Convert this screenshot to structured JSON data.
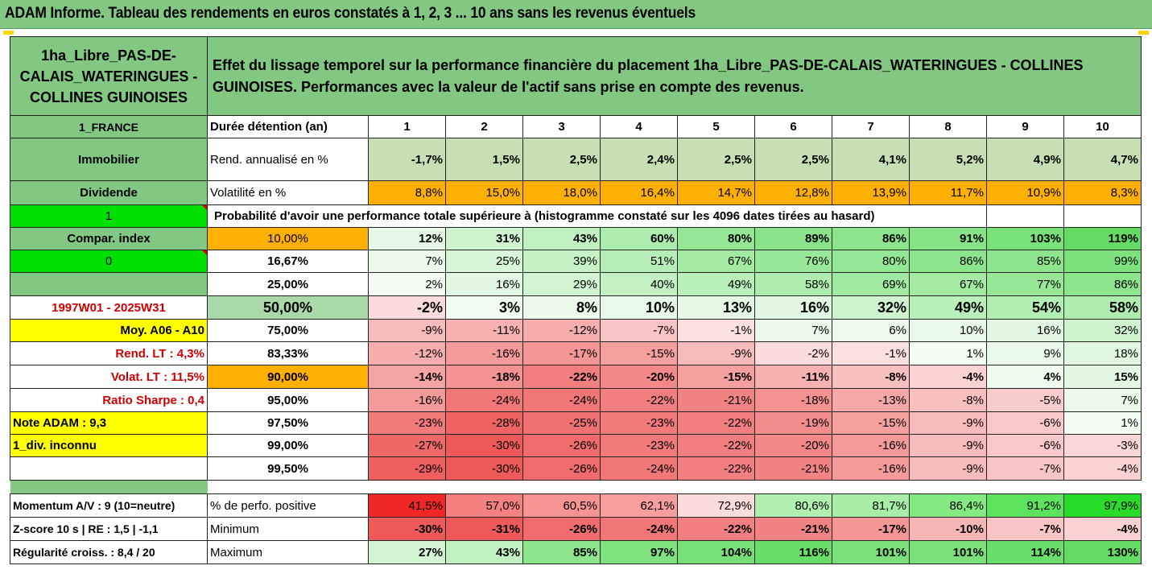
{
  "banner": {
    "title": "ADAM Informe. Tableau des rendements en euros constatés à 1, 2, 3 ... 10 ans sans les revenus éventuels"
  },
  "asset_name": "1ha_Libre_PAS-DE-CALAIS_WATERINGUES - COLLINES GUINOISES",
  "chart_title": "Effet du lissage temporel sur la performance financière du placement 1ha_Libre_PAS-DE-CALAIS_WATERINGUES - COLLINES GUINOISES. Performances avec la valeur de l'actif sans prise en compte des revenus.",
  "left": {
    "country": "1_FRANCE",
    "category": "Immobilier",
    "dividend": "Dividende",
    "dividend_value": "1",
    "compar_index": "Compar. index",
    "compar_value": "0",
    "period": "1997W01 - 2025W31",
    "moy": "Moy. A06 - A10",
    "rend_lt": "Rend. LT :    4,3%",
    "volat_lt": "Volat. LT :   11,5%",
    "sharpe": "Ratio Sharpe :    0,4",
    "note": "Note ADAM : 9,3",
    "div": "1_div. inconnu",
    "momentum": "Momentum A/V : 9 (10=neutre)",
    "zscore": "Z-score 10 s  |  RE : 1,5  |  -1,1",
    "regul": "Régularité croiss. : 8,4 / 20"
  },
  "labels": {
    "duree": "Durée détention (an)",
    "rend": "Rend. annualisé en %",
    "vol": "Volatilité en %",
    "prob": "Probabilité d'avoir une performance totale supérieure à (histogramme constaté sur les 4096 dates tirées au hasard)",
    "pct_pos": "% de perfo. positive",
    "minimum": "Minimum",
    "maximum": "Maximum"
  },
  "years": [
    "1",
    "2",
    "3",
    "4",
    "5",
    "6",
    "7",
    "8",
    "9",
    "10"
  ],
  "rend": [
    "-1,7%",
    "1,5%",
    "2,5%",
    "2,4%",
    "2,5%",
    "2,5%",
    "4,1%",
    "5,2%",
    "4,9%",
    "4,7%"
  ],
  "vol": [
    "8,8%",
    "15,0%",
    "18,0%",
    "16,4%",
    "14,7%",
    "12,8%",
    "13,9%",
    "11,7%",
    "10,9%",
    "8,3%"
  ],
  "quantiles": [
    {
      "q": "10,00%",
      "vals": [
        "12%",
        "31%",
        "43%",
        "60%",
        "80%",
        "89%",
        "86%",
        "91%",
        "103%",
        "119%"
      ]
    },
    {
      "q": "16,67%",
      "vals": [
        "7%",
        "25%",
        "39%",
        "51%",
        "67%",
        "76%",
        "80%",
        "86%",
        "85%",
        "99%"
      ]
    },
    {
      "q": "25,00%",
      "vals": [
        "2%",
        "16%",
        "29%",
        "40%",
        "49%",
        "58%",
        "69%",
        "67%",
        "77%",
        "86%"
      ]
    },
    {
      "q": "50,00%",
      "vals": [
        "-2%",
        "3%",
        "8%",
        "10%",
        "13%",
        "16%",
        "32%",
        "49%",
        "54%",
        "58%"
      ]
    },
    {
      "q": "75,00%",
      "vals": [
        "-9%",
        "-11%",
        "-12%",
        "-7%",
        "-1%",
        "7%",
        "6%",
        "10%",
        "16%",
        "32%"
      ]
    },
    {
      "q": "83,33%",
      "vals": [
        "-12%",
        "-16%",
        "-17%",
        "-15%",
        "-9%",
        "-2%",
        "-1%",
        "1%",
        "9%",
        "18%"
      ]
    },
    {
      "q": "90,00%",
      "vals": [
        "-14%",
        "-18%",
        "-22%",
        "-20%",
        "-15%",
        "-11%",
        "-8%",
        "-4%",
        "4%",
        "15%"
      ]
    },
    {
      "q": "95,00%",
      "vals": [
        "-16%",
        "-24%",
        "-24%",
        "-22%",
        "-21%",
        "-18%",
        "-13%",
        "-8%",
        "-5%",
        "7%"
      ]
    },
    {
      "q": "97,50%",
      "vals": [
        "-23%",
        "-28%",
        "-25%",
        "-23%",
        "-22%",
        "-19%",
        "-15%",
        "-9%",
        "-6%",
        "1%"
      ]
    },
    {
      "q": "99,00%",
      "vals": [
        "-27%",
        "-30%",
        "-26%",
        "-23%",
        "-22%",
        "-20%",
        "-16%",
        "-9%",
        "-6%",
        "-3%"
      ]
    },
    {
      "q": "99,50%",
      "vals": [
        "-29%",
        "-30%",
        "-26%",
        "-24%",
        "-22%",
        "-21%",
        "-16%",
        "-9%",
        "-7%",
        "-4%"
      ]
    }
  ],
  "pct_pos": [
    "41,5%",
    "57,0%",
    "60,5%",
    "62,1%",
    "72,9%",
    "80,6%",
    "81,7%",
    "86,4%",
    "91,2%",
    "97,9%"
  ],
  "minimum": [
    "-30%",
    "-31%",
    "-26%",
    "-24%",
    "-22%",
    "-21%",
    "-17%",
    "-10%",
    "-7%",
    "-4%"
  ],
  "maximum": [
    "27%",
    "43%",
    "85%",
    "97%",
    "104%",
    "116%",
    "101%",
    "101%",
    "114%",
    "130%"
  ],
  "colors": {
    "header_green": "#82c882",
    "bright_green": "#00e000",
    "yellow": "#ffff00",
    "orange": "#ffb000",
    "red_text": "#d00000"
  }
}
